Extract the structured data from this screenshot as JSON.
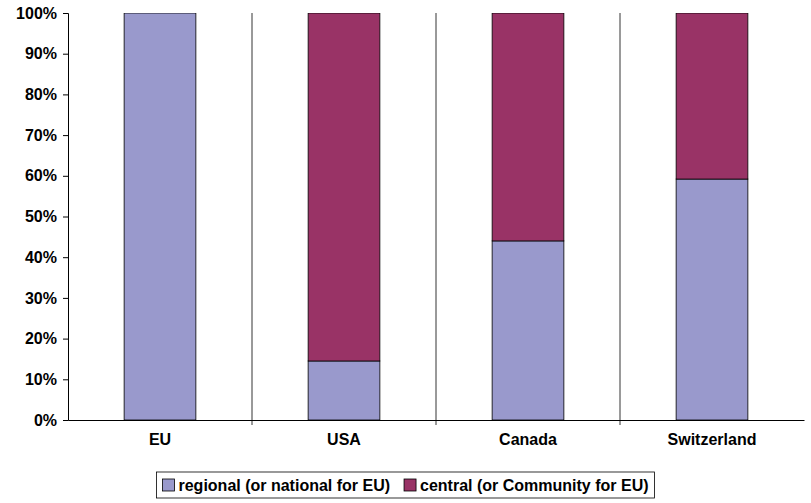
{
  "chart_data": {
    "type": "bar",
    "stacked": true,
    "categories": [
      "EU",
      "USA",
      "Canada",
      "Switzerland"
    ],
    "series": [
      {
        "name": "regional (or national for EU)",
        "color": "#9999cc",
        "values": [
          100,
          14.5,
          44,
          59.2
        ]
      },
      {
        "name": "central (or Community for EU)",
        "color": "#993366",
        "values": [
          0,
          85.5,
          56,
          40.8
        ]
      }
    ],
    "ylim": [
      0,
      100
    ],
    "yticks": [
      {
        "value": 0,
        "label": "0%"
      },
      {
        "value": 10,
        "label": "10%"
      },
      {
        "value": 20,
        "label": "20%"
      },
      {
        "value": 30,
        "label": "30%"
      },
      {
        "value": 40,
        "label": "40%"
      },
      {
        "value": 50,
        "label": "50%"
      },
      {
        "value": 60,
        "label": "60%"
      },
      {
        "value": 70,
        "label": "70%"
      },
      {
        "value": 80,
        "label": "80%"
      },
      {
        "value": 90,
        "label": "90%"
      },
      {
        "value": 100,
        "label": "100%"
      }
    ],
    "grid": true,
    "legend": "bottom"
  }
}
